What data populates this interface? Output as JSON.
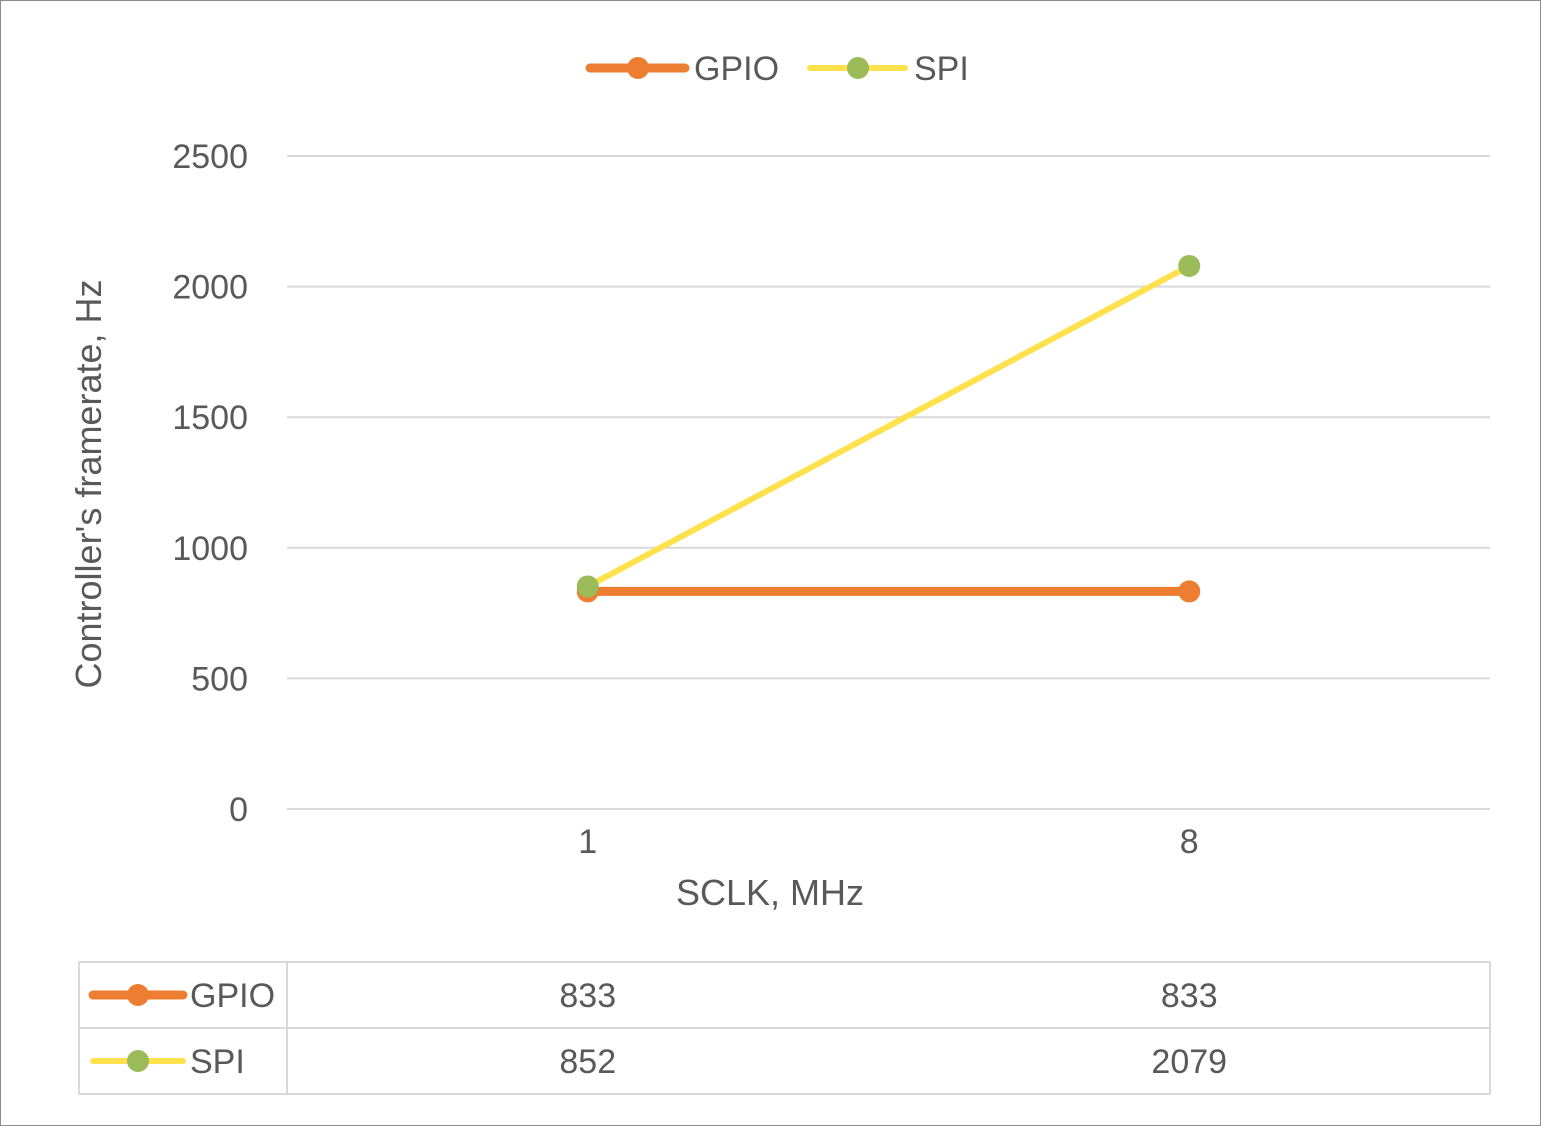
{
  "chart_data": {
    "type": "line",
    "categories": [
      "1",
      "8"
    ],
    "series": [
      {
        "name": "GPIO",
        "values": [
          833,
          833
        ],
        "color": "#ED7D31",
        "marker_color": "#ED7D31"
      },
      {
        "name": "SPI",
        "values": [
          852,
          2079
        ],
        "color": "#FFE14D",
        "marker_color": "#9BBB59"
      }
    ],
    "xlabel": "SCLK, MHz",
    "ylabel": "Controller's framerate, Hz",
    "ylim": [
      0,
      2500
    ],
    "yticks": [
      "0",
      "500",
      "1000",
      "1500",
      "2000",
      "2500"
    ],
    "grid": true,
    "legend_position": "top",
    "data_table": true,
    "colors": {
      "grid": "#D9D9D9",
      "text": "#595959",
      "border": "#8C8C8C"
    }
  }
}
